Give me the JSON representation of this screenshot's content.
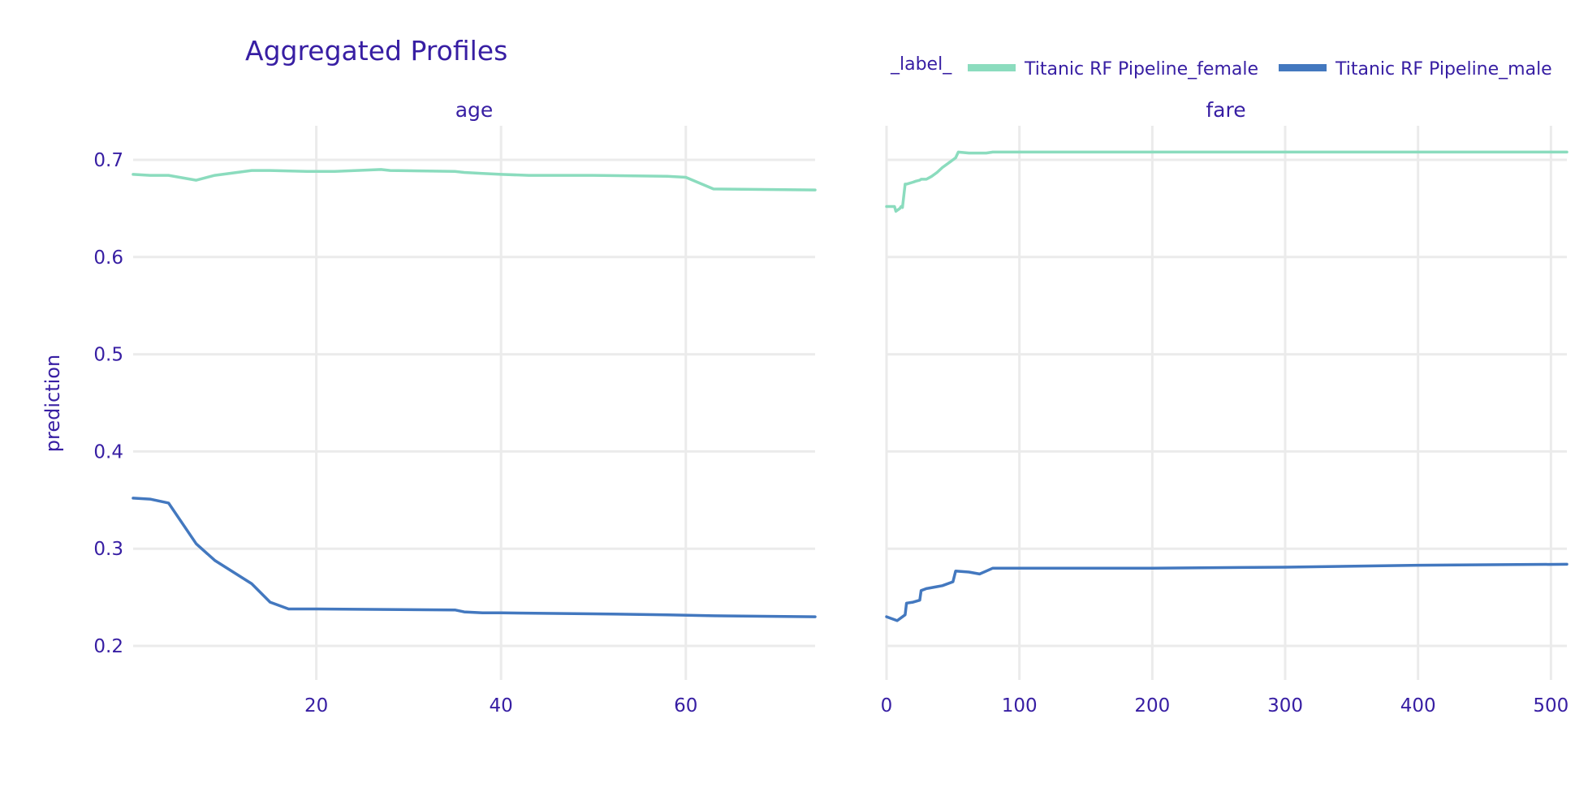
{
  "chart_data": {
    "type": "line",
    "title": "Aggregated Profiles",
    "ylabel": "prediction",
    "ylim": [
      0.2,
      0.7
    ],
    "yticks": [
      0.2,
      0.3,
      0.4,
      0.5,
      0.6,
      0.7
    ],
    "legend": {
      "title": "_label_",
      "placement": "top-right",
      "entries": [
        {
          "name": "Titanic RF Pipeline_female",
          "color": "#8bdcbe"
        },
        {
          "name": "Titanic RF Pipeline_male",
          "color": "#4378bf"
        }
      ]
    },
    "panels": [
      {
        "title": "age",
        "xlim": [
          0.17,
          74
        ],
        "xticks": [
          20,
          40,
          60
        ],
        "series": [
          {
            "name": "Titanic RF Pipeline_female",
            "color": "#8bdcbe",
            "x": [
              0.17,
              2,
              4,
              7,
              9,
              13,
              15,
              19,
              22,
              27,
              28,
              35,
              36,
              38,
              40,
              43,
              50,
              58,
              60,
              63,
              74
            ],
            "y": [
              0.685,
              0.684,
              0.684,
              0.679,
              0.684,
              0.689,
              0.689,
              0.688,
              0.688,
              0.69,
              0.689,
              0.688,
              0.687,
              0.686,
              0.685,
              0.684,
              0.684,
              0.683,
              0.682,
              0.67,
              0.669
            ]
          },
          {
            "name": "Titanic RF Pipeline_male",
            "color": "#4378bf",
            "x": [
              0.17,
              2,
              4,
              7,
              9,
              13,
              15,
              17,
              20,
              35,
              36,
              38,
              40,
              50,
              58,
              63,
              74
            ],
            "y": [
              0.352,
              0.351,
              0.347,
              0.305,
              0.288,
              0.264,
              0.245,
              0.238,
              0.238,
              0.237,
              0.235,
              0.234,
              0.234,
              0.233,
              0.232,
              0.231,
              0.23
            ]
          }
        ]
      },
      {
        "title": "fare",
        "xlim": [
          0,
          512
        ],
        "xticks": [
          0,
          100,
          200,
          300,
          400,
          500
        ],
        "series": [
          {
            "name": "Titanic RF Pipeline_female",
            "color": "#8bdcbe",
            "x": [
              0,
              6,
              7,
              8,
              10,
              11,
              12,
              14,
              15,
              20,
              22,
              25,
              26,
              30,
              34,
              38,
              42,
              48,
              52,
              54,
              62,
              70,
              75,
              80,
              100,
              200,
              300,
              400,
              512
            ],
            "y": [
              0.652,
              0.652,
              0.647,
              0.648,
              0.65,
              0.652,
              0.651,
              0.675,
              0.675,
              0.677,
              0.678,
              0.679,
              0.68,
              0.68,
              0.683,
              0.687,
              0.692,
              0.698,
              0.702,
              0.708,
              0.707,
              0.707,
              0.707,
              0.708,
              0.708,
              0.708,
              0.708,
              0.708,
              0.708
            ]
          },
          {
            "name": "Titanic RF Pipeline_male",
            "color": "#4378bf",
            "x": [
              0,
              8,
              14,
              15,
              20,
              25,
              26,
              30,
              38,
              42,
              50,
              52,
              62,
              70,
              75,
              80,
              90,
              100,
              200,
              300,
              400,
              512
            ],
            "y": [
              0.23,
              0.226,
              0.232,
              0.244,
              0.245,
              0.247,
              0.257,
              0.259,
              0.261,
              0.262,
              0.266,
              0.277,
              0.276,
              0.274,
              0.277,
              0.28,
              0.28,
              0.28,
              0.28,
              0.281,
              0.283,
              0.284
            ]
          }
        ]
      }
    ]
  }
}
